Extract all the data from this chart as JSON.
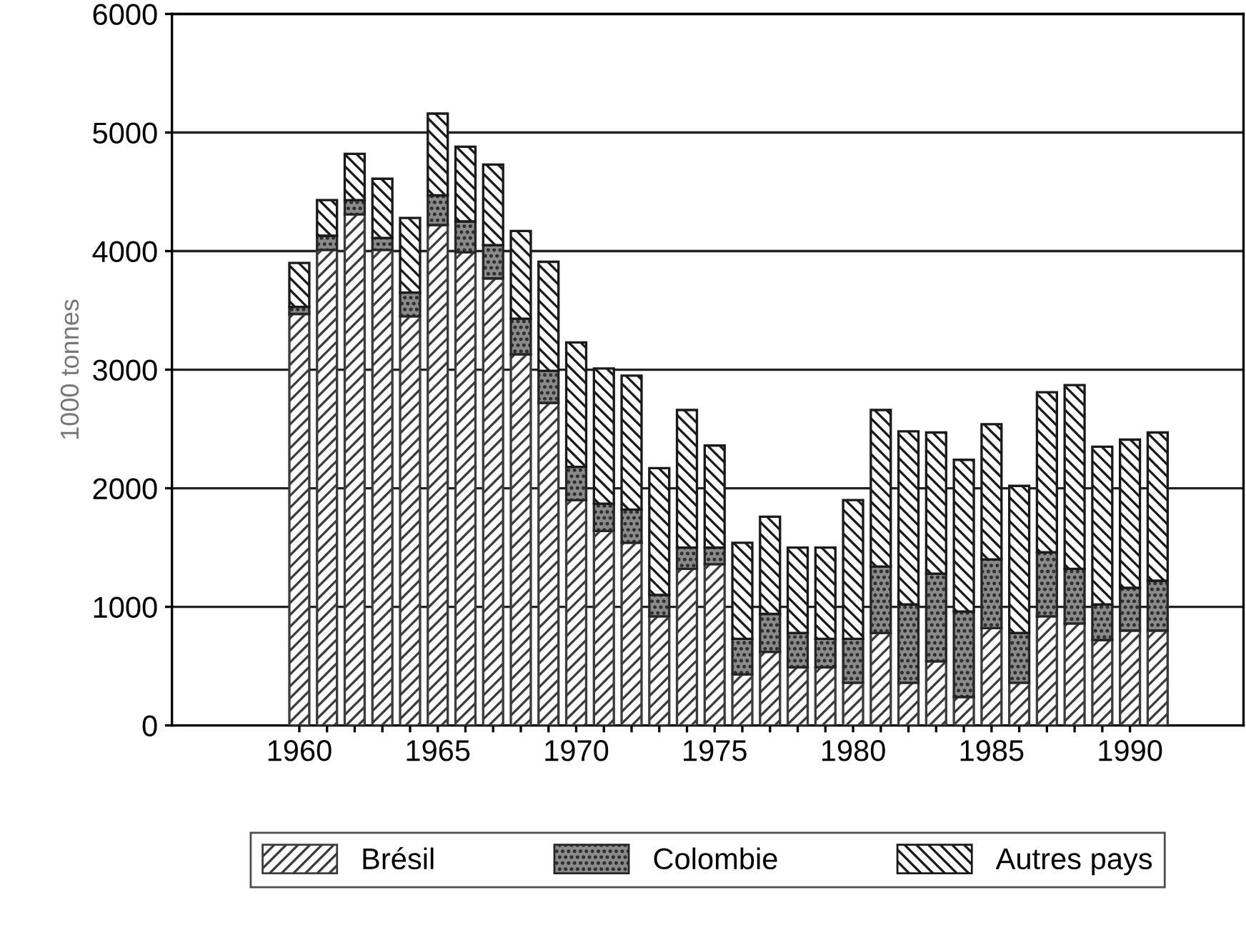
{
  "chart_data": {
    "type": "bar",
    "stacked": true,
    "ylabel": "1000 tonnes",
    "x": [
      1960,
      1961,
      1962,
      1963,
      1964,
      1965,
      1966,
      1967,
      1968,
      1969,
      1970,
      1971,
      1972,
      1973,
      1974,
      1975,
      1976,
      1977,
      1978,
      1979,
      1980,
      1981,
      1982,
      1983,
      1984,
      1985,
      1986,
      1987,
      1988,
      1989,
      1990,
      1991
    ],
    "series": [
      {
        "name": "Brésil",
        "color": "#3c3c3c",
        "values": [
          3470,
          4010,
          4310,
          4010,
          3450,
          4220,
          3990,
          3770,
          3130,
          2720,
          1900,
          1640,
          1540,
          920,
          1320,
          1360,
          430,
          620,
          490,
          490,
          360,
          780,
          360,
          540,
          240,
          820,
          360,
          920,
          860,
          720,
          800,
          800
        ]
      },
      {
        "name": "Colombie",
        "color": "#262626",
        "values": [
          60,
          120,
          120,
          100,
          200,
          250,
          260,
          280,
          300,
          270,
          280,
          230,
          280,
          180,
          180,
          140,
          300,
          320,
          290,
          240,
          370,
          560,
          660,
          740,
          720,
          580,
          420,
          540,
          460,
          300,
          360,
          420
        ]
      },
      {
        "name": "Autres pays",
        "color": "#1a1a1a",
        "values": [
          370,
          300,
          390,
          500,
          630,
          690,
          630,
          680,
          740,
          920,
          1050,
          1140,
          1130,
          1070,
          1160,
          860,
          810,
          820,
          720,
          770,
          1170,
          1320,
          1460,
          1190,
          1280,
          1140,
          1240,
          1350,
          1550,
          1330,
          1250,
          1250
        ]
      }
    ],
    "xlim": [
      1955.4,
      1994.1
    ],
    "xticks": [
      1960,
      {
        "value": 1961,
        "label": null
      },
      {
        "value": 1962,
        "label": null
      },
      {
        "value": 1963,
        "label": null
      },
      {
        "value": 1964,
        "label": null
      },
      1965,
      {
        "value": 1966,
        "label": null
      },
      {
        "value": 1967,
        "label": null
      },
      {
        "value": 1968,
        "label": null
      },
      {
        "value": 1969,
        "label": null
      },
      1970,
      {
        "value": 1971,
        "label": null
      },
      {
        "value": 1972,
        "label": null
      },
      {
        "value": 1973,
        "label": null
      },
      {
        "value": 1974,
        "label": null
      },
      1975,
      {
        "value": 1976,
        "label": null
      },
      {
        "value": 1977,
        "label": null
      },
      {
        "value": 1978,
        "label": null
      },
      {
        "value": 1979,
        "label": null
      },
      1980,
      {
        "value": 1981,
        "label": null
      },
      {
        "value": 1982,
        "label": null
      },
      {
        "value": 1983,
        "label": null
      },
      {
        "value": 1984,
        "label": null
      },
      1985,
      {
        "value": 1986,
        "label": null
      },
      {
        "value": 1987,
        "label": null
      },
      {
        "value": 1988,
        "label": null
      },
      {
        "value": 1989,
        "label": null
      },
      1990
    ],
    "ylim": [
      0,
      6000
    ],
    "yticks": [
      0,
      1000,
      2000,
      3000,
      4000,
      5000,
      6000
    ],
    "grid": "y",
    "legend": "bottom"
  }
}
